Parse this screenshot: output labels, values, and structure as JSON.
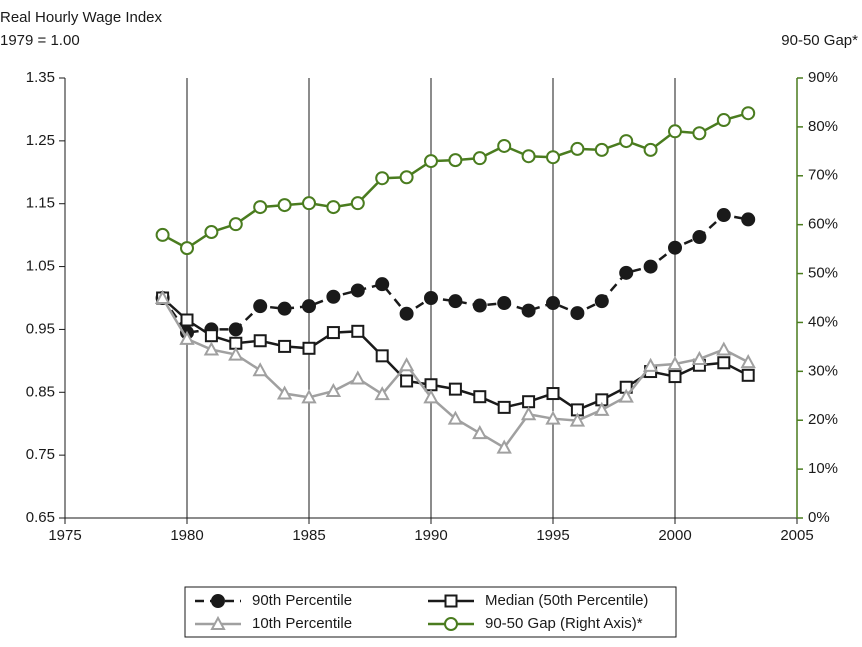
{
  "chart_data": {
    "type": "line",
    "y_label_lines": [
      "Real Hourly Wage Index",
      "1979 = 1.00"
    ],
    "y2_label": "90-50 Gap*",
    "x": [
      1979,
      1980,
      1981,
      1982,
      1983,
      1984,
      1985,
      1986,
      1987,
      1988,
      1989,
      1990,
      1991,
      1992,
      1993,
      1994,
      1995,
      1996,
      1997,
      1998,
      1999,
      2000,
      2001,
      2002,
      2003
    ],
    "series": [
      {
        "name": "90th Percentile",
        "color": "#1a1a1a",
        "marker": "filled-circle",
        "dashed": true,
        "values": [
          1.0,
          0.945,
          0.95,
          0.95,
          0.987,
          0.983,
          0.987,
          1.002,
          1.012,
          1.022,
          0.975,
          1.0,
          0.995,
          0.988,
          0.992,
          0.98,
          0.992,
          0.976,
          0.995,
          1.04,
          1.05,
          1.08,
          1.097,
          1.132,
          1.125
        ]
      },
      {
        "name": "Median (50th Percentile)",
        "color": "#1a1a1a",
        "marker": "open-square",
        "dashed": false,
        "values": [
          1.0,
          0.965,
          0.94,
          0.928,
          0.932,
          0.923,
          0.92,
          0.945,
          0.947,
          0.908,
          0.868,
          0.862,
          0.855,
          0.843,
          0.826,
          0.835,
          0.848,
          0.822,
          0.838,
          0.858,
          0.883,
          0.875,
          0.893,
          0.897,
          0.877
        ]
      },
      {
        "name": "10th Percentile",
        "color": "#a0a0a0",
        "marker": "open-triangle",
        "dashed": false,
        "values": [
          1.0,
          0.935,
          0.918,
          0.91,
          0.885,
          0.848,
          0.842,
          0.852,
          0.872,
          0.847,
          0.893,
          0.842,
          0.808,
          0.785,
          0.762,
          0.815,
          0.808,
          0.805,
          0.822,
          0.843,
          0.892,
          0.895,
          0.903,
          0.918,
          0.898
        ]
      },
      {
        "name": "90-50 Gap (Right Axis)*",
        "color": "#4a7c1f",
        "marker": "open-circle",
        "dashed": false,
        "axis": "y2",
        "values": [
          57.9,
          55.2,
          58.5,
          60.1,
          63.6,
          64.0,
          64.4,
          63.6,
          64.4,
          69.5,
          69.7,
          73.0,
          73.2,
          73.6,
          76.1,
          74.0,
          73.8,
          75.5,
          75.3,
          77.1,
          75.3,
          79.1,
          78.7,
          81.4,
          82.8
        ]
      }
    ],
    "xlim": [
      1975,
      2005
    ],
    "xticks": [
      1975,
      1980,
      1985,
      1990,
      1995,
      2000,
      2005
    ],
    "ylim": [
      0.65,
      1.35
    ],
    "yticks": [
      0.65,
      0.75,
      0.85,
      0.95,
      1.05,
      1.15,
      1.25,
      1.35
    ],
    "y2lim": [
      0,
      90
    ],
    "y2ticks": [
      {
        "value": 0,
        "label": "0%"
      },
      {
        "value": 10,
        "label": "10%"
      },
      {
        "value": 20,
        "label": "20%"
      },
      {
        "value": 30,
        "label": "30%"
      },
      {
        "value": 40,
        "label": "40%"
      },
      {
        "value": 50,
        "label": "50%"
      },
      {
        "value": 60,
        "label": "60%"
      },
      {
        "value": 70,
        "label": "70%"
      },
      {
        "value": 80,
        "label": "80%"
      },
      {
        "value": 90,
        "label": "90%"
      }
    ],
    "y2_color": "#4a7c1f",
    "xgrid": true
  }
}
